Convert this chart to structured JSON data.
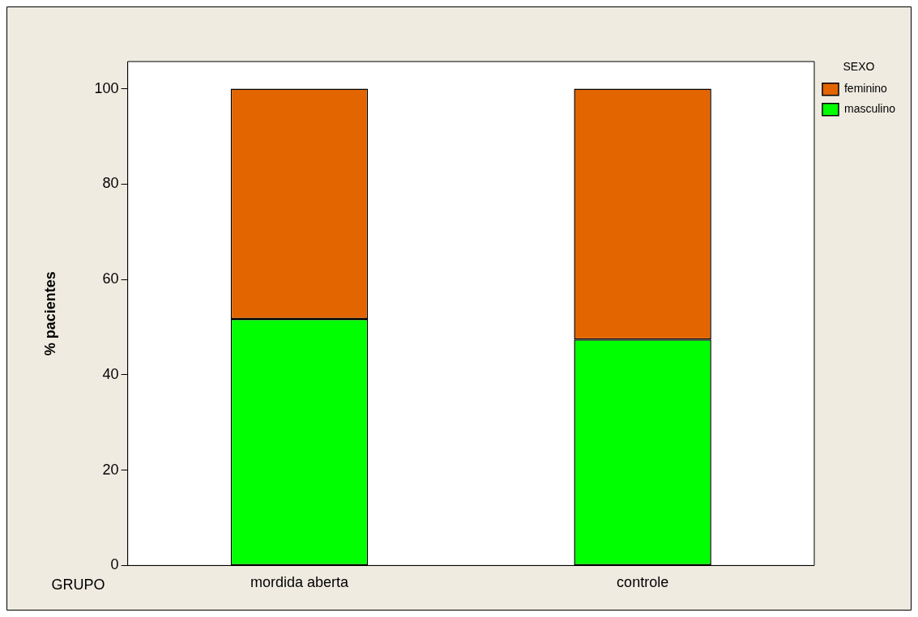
{
  "chart_data": {
    "type": "bar",
    "stacked": true,
    "categories": [
      "mordida aberta",
      "controle"
    ],
    "series": [
      {
        "name": "masculino",
        "color": "#00ff00",
        "values": [
          51.7,
          47.4
        ]
      },
      {
        "name": "feminino",
        "color": "#e36500",
        "values": [
          48.3,
          52.6
        ]
      }
    ],
    "xlabel": "GRUPO",
    "ylabel": "% pacientes",
    "legend_title": "SEXO",
    "legend": "right",
    "ylim": [
      0,
      105.7
    ],
    "yticks": [
      0,
      20,
      40,
      60,
      80,
      100
    ],
    "grid": false
  }
}
